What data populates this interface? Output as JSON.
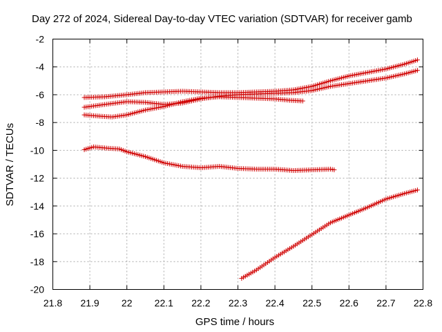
{
  "chart_data": {
    "type": "scatter",
    "title": "Day 272 of 2024, Sidereal Day-to-day VTEC variation (SDTVAR) for receiver gamb",
    "xlabel": "GPS time / hours",
    "ylabel": "SDTVAR / TECUs",
    "xlim": [
      21.8,
      22.8
    ],
    "ylim": [
      -20,
      -2
    ],
    "xticks": [
      21.8,
      21.9,
      22.0,
      22.1,
      22.2,
      22.3,
      22.4,
      22.5,
      22.6,
      22.7,
      22.8
    ],
    "xtick_labels": [
      "21.8",
      "21.9",
      "22",
      "22.1",
      "22.2",
      "22.3",
      "22.4",
      "22.5",
      "22.6",
      "22.7",
      "22.8"
    ],
    "yticks": [
      -20,
      -18,
      -16,
      -14,
      -12,
      -10,
      -8,
      -6,
      -4,
      -2
    ],
    "ytick_labels": [
      "-20",
      "-18",
      "-16",
      "-14",
      "-12",
      "-10",
      "-8",
      "-6",
      "-4",
      "-2"
    ],
    "grid": true,
    "marker": "+",
    "color": "#d00000",
    "series": [
      {
        "name": "series-1",
        "x": [
          21.885,
          21.94,
          22.0,
          22.05,
          22.1,
          22.15,
          22.2,
          22.25,
          22.3,
          22.35,
          22.4,
          22.45,
          22.5,
          22.55,
          22.6,
          22.65,
          22.7,
          22.75,
          22.785
        ],
        "y": [
          -6.2,
          -6.15,
          -6.0,
          -5.85,
          -5.8,
          -5.75,
          -5.8,
          -5.85,
          -5.85,
          -5.8,
          -5.75,
          -5.65,
          -5.4,
          -5.0,
          -4.65,
          -4.4,
          -4.15,
          -3.8,
          -3.5
        ]
      },
      {
        "name": "series-2",
        "x": [
          21.885,
          21.94,
          22.0,
          22.05,
          22.1,
          22.15,
          22.2,
          22.25,
          22.3,
          22.35,
          22.4,
          22.45,
          22.5,
          22.55,
          22.6,
          22.65,
          22.7,
          22.75,
          22.785
        ],
        "y": [
          -6.9,
          -6.7,
          -6.5,
          -6.55,
          -6.7,
          -6.6,
          -6.3,
          -6.1,
          -6.0,
          -5.95,
          -5.9,
          -5.85,
          -5.7,
          -5.4,
          -5.2,
          -5.0,
          -4.8,
          -4.5,
          -4.25
        ]
      },
      {
        "name": "series-3",
        "x": [
          21.885,
          21.93,
          21.96,
          22.0,
          22.05,
          22.1,
          22.15,
          22.2,
          22.25,
          22.3,
          22.35,
          22.4,
          22.44,
          22.475
        ],
        "y": [
          -7.45,
          -7.55,
          -7.6,
          -7.45,
          -7.1,
          -6.85,
          -6.5,
          -6.25,
          -6.15,
          -6.2,
          -6.25,
          -6.3,
          -6.4,
          -6.45
        ]
      },
      {
        "name": "series-4",
        "x": [
          21.885,
          21.91,
          21.95,
          21.98,
          22.0,
          22.05,
          22.1,
          22.15,
          22.2,
          22.25,
          22.3,
          22.35,
          22.4,
          22.45,
          22.5,
          22.55,
          22.56
        ],
        "y": [
          -9.95,
          -9.75,
          -9.85,
          -9.9,
          -10.1,
          -10.45,
          -10.9,
          -11.15,
          -11.25,
          -11.15,
          -11.3,
          -11.35,
          -11.35,
          -11.45,
          -11.4,
          -11.35,
          -11.4
        ]
      },
      {
        "name": "series-5",
        "x": [
          22.31,
          22.35,
          22.4,
          22.45,
          22.5,
          22.55,
          22.6,
          22.65,
          22.7,
          22.75,
          22.785
        ],
        "y": [
          -19.2,
          -18.6,
          -17.7,
          -16.9,
          -16.05,
          -15.2,
          -14.65,
          -14.1,
          -13.5,
          -13.1,
          -12.85
        ]
      }
    ]
  }
}
